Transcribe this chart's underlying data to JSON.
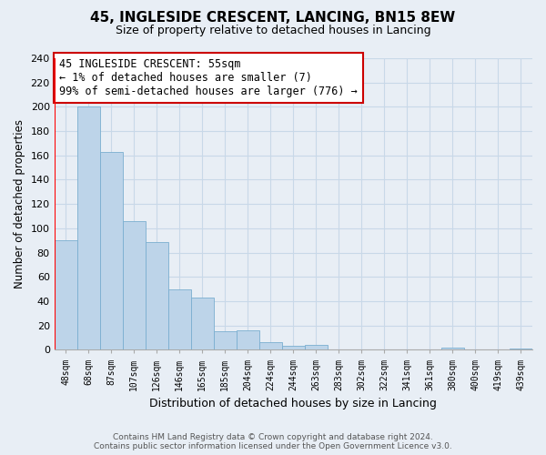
{
  "title": "45, INGLESIDE CRESCENT, LANCING, BN15 8EW",
  "subtitle": "Size of property relative to detached houses in Lancing",
  "xlabel": "Distribution of detached houses by size in Lancing",
  "ylabel": "Number of detached properties",
  "bins": [
    "48sqm",
    "68sqm",
    "87sqm",
    "107sqm",
    "126sqm",
    "146sqm",
    "165sqm",
    "185sqm",
    "204sqm",
    "224sqm",
    "244sqm",
    "263sqm",
    "283sqm",
    "302sqm",
    "322sqm",
    "341sqm",
    "361sqm",
    "380sqm",
    "400sqm",
    "419sqm",
    "439sqm"
  ],
  "values": [
    90,
    200,
    163,
    106,
    89,
    50,
    43,
    15,
    16,
    6,
    3,
    4,
    0,
    0,
    0,
    0,
    0,
    2,
    0,
    0,
    1
  ],
  "bar_color": "#bdd4e9",
  "bar_edge_color": "#7aaed0",
  "ylim": [
    0,
    240
  ],
  "yticks": [
    0,
    20,
    40,
    60,
    80,
    100,
    120,
    140,
    160,
    180,
    200,
    220,
    240
  ],
  "annotation_box_text": "45 INGLESIDE CRESCENT: 55sqm\n← 1% of detached houses are smaller (7)\n99% of semi-detached houses are larger (776) →",
  "annotation_box_color": "#ffffff",
  "annotation_box_edge_color": "#cc0000",
  "red_line_x": 0,
  "footer_line1": "Contains HM Land Registry data © Crown copyright and database right 2024.",
  "footer_line2": "Contains public sector information licensed under the Open Government Licence v3.0.",
  "grid_color": "#c8d8e8",
  "bg_color": "#e8eef5"
}
